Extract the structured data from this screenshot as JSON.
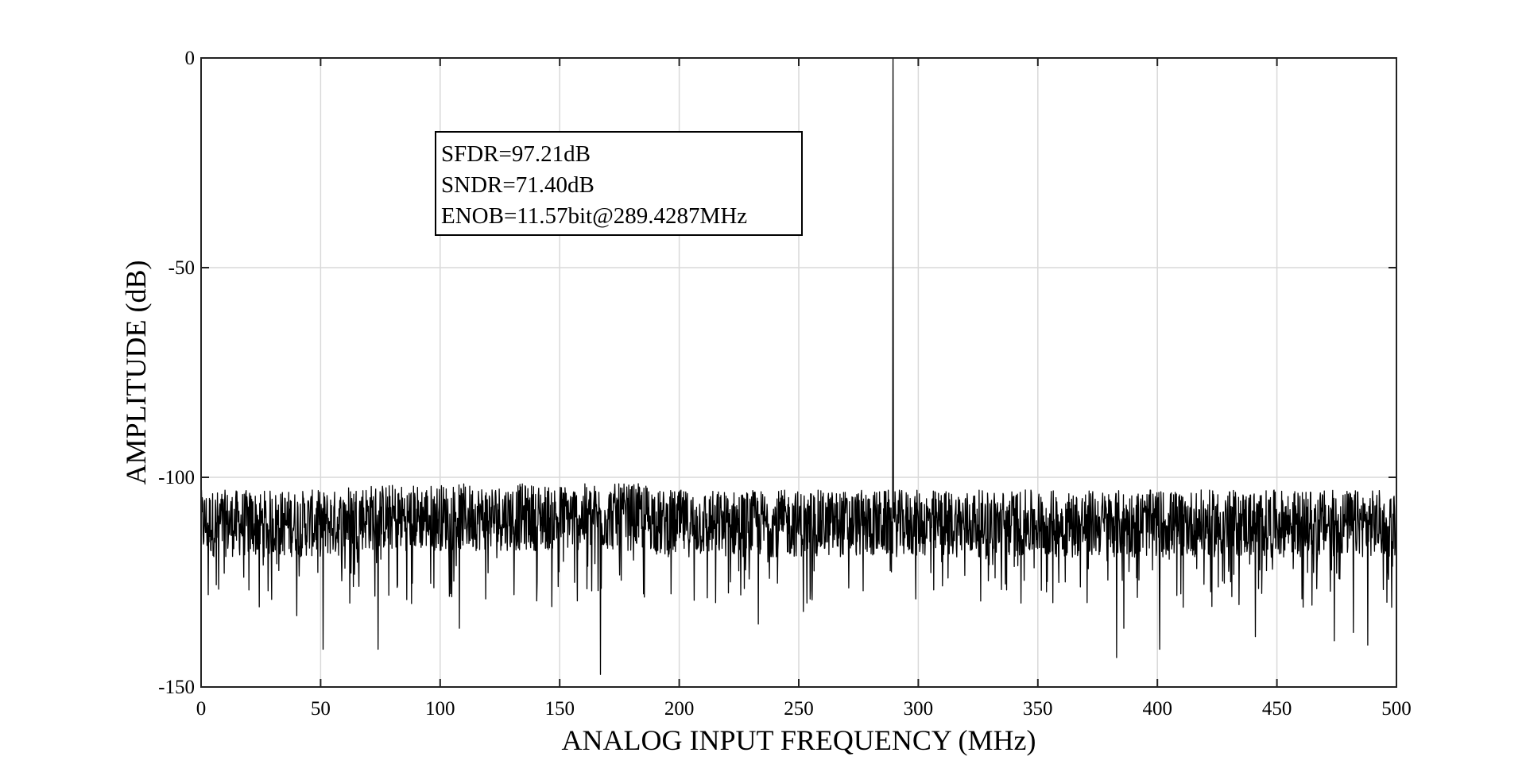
{
  "chart_data": {
    "type": "line",
    "title": "",
    "xlabel": "ANALOG INPUT FREQUENCY (MHz)",
    "ylabel": "AMPLITUDE (dB)",
    "xlim": [
      0,
      500
    ],
    "ylim": [
      -150,
      0
    ],
    "x_ticks": [
      0,
      50,
      100,
      150,
      200,
      250,
      300,
      350,
      400,
      450,
      500
    ],
    "x_tick_labels": [
      "0",
      "50",
      "100",
      "150",
      "200",
      "250",
      "300",
      "350",
      "400",
      "450",
      "500"
    ],
    "y_ticks": [
      0,
      -50,
      -100,
      -150
    ],
    "y_tick_labels": [
      "0",
      "-50",
      "-100",
      "-150"
    ],
    "grid": true,
    "line_color": "#000000",
    "annotation": {
      "lines": [
        "SFDR=97.21dB",
        "SNDR=71.40dB",
        "ENOB=11.57bit@289.4287MHz"
      ]
    },
    "series": [
      {
        "fundamental": {
          "x": 289.4287,
          "y": 0
        },
        "noise_floor_mean": -111,
        "noise_floor_top": -98,
        "noise_floor_min": -147,
        "deep_dips": [
          {
            "x": 3,
            "y": -128
          },
          {
            "x": 40,
            "y": -133
          },
          {
            "x": 51,
            "y": -141
          },
          {
            "x": 66,
            "y": -126
          },
          {
            "x": 74,
            "y": -141
          },
          {
            "x": 108,
            "y": -136
          },
          {
            "x": 119,
            "y": -129
          },
          {
            "x": 166,
            "y": -127
          },
          {
            "x": 167,
            "y": -147
          },
          {
            "x": 233,
            "y": -135
          },
          {
            "x": 252,
            "y": -132
          },
          {
            "x": 299,
            "y": -129
          },
          {
            "x": 343,
            "y": -130
          },
          {
            "x": 383,
            "y": -143
          },
          {
            "x": 386,
            "y": -136
          },
          {
            "x": 401,
            "y": -141
          },
          {
            "x": 441,
            "y": -138
          },
          {
            "x": 474,
            "y": -139
          },
          {
            "x": 482,
            "y": -137
          },
          {
            "x": 488,
            "y": -140
          },
          {
            "x": 498,
            "y": -131
          }
        ]
      }
    ]
  }
}
